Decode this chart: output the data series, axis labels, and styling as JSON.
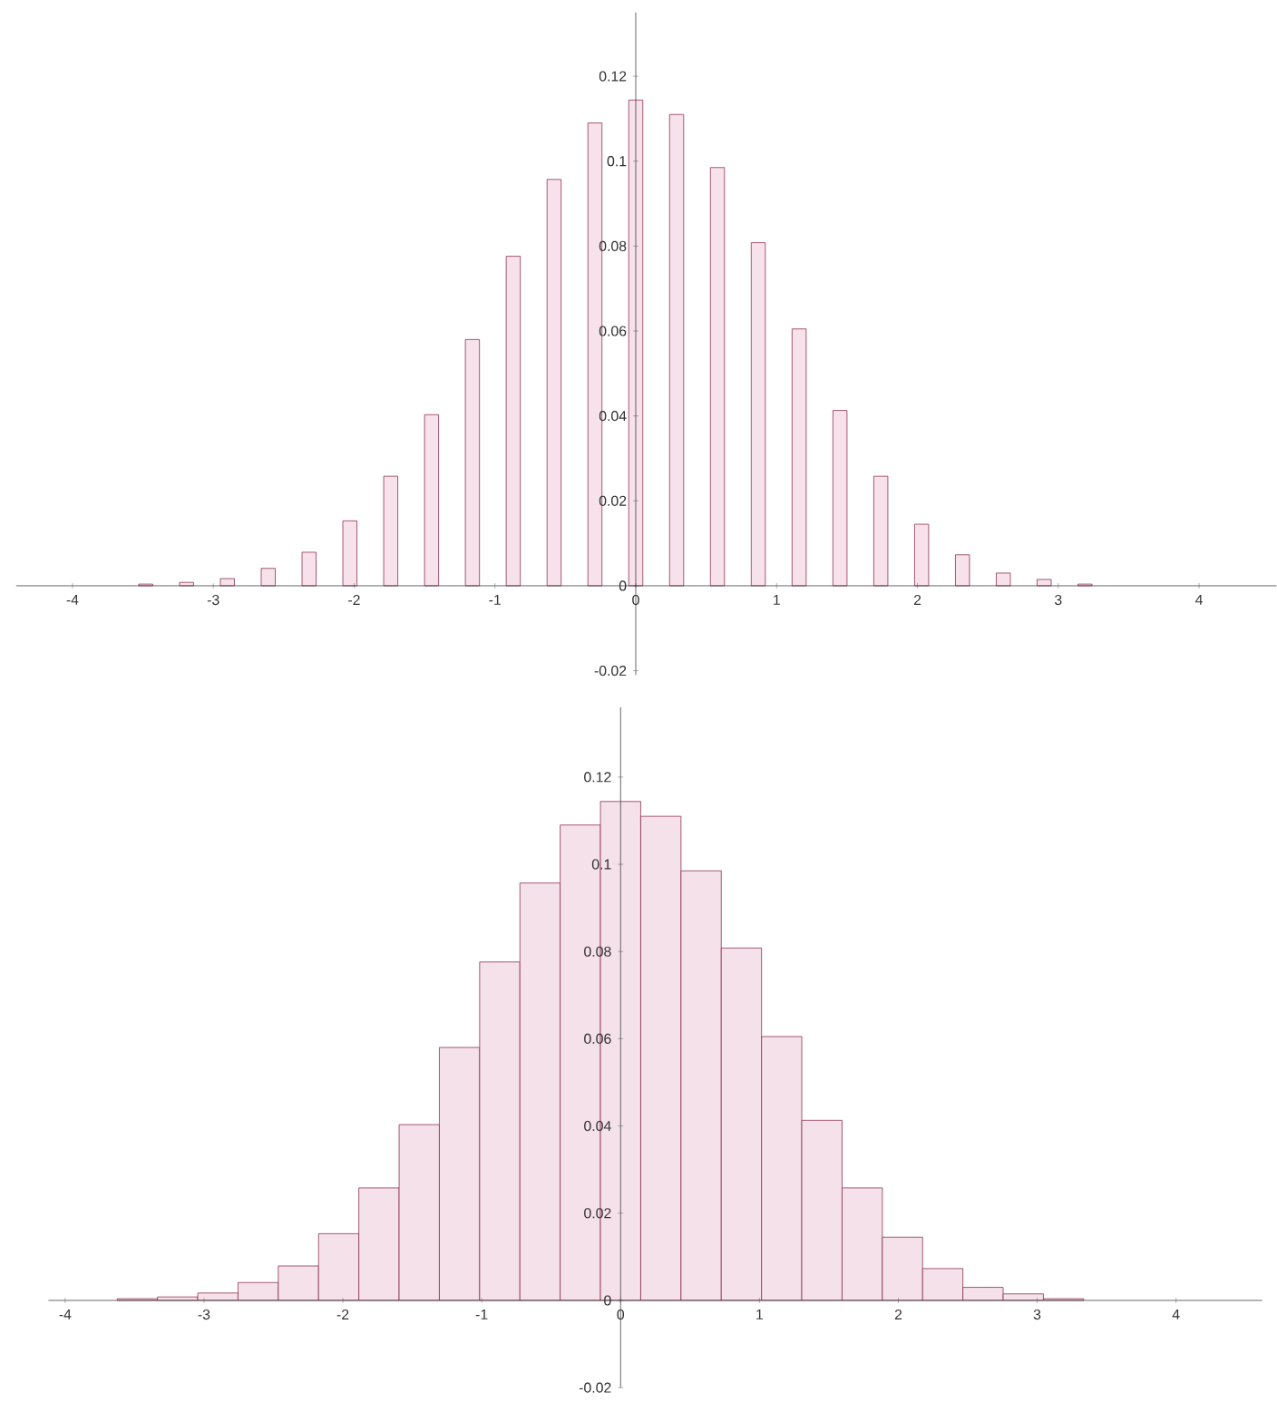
{
  "chart_data": [
    {
      "type": "bar",
      "x": [
        -3.48,
        -3.19,
        -2.9,
        -2.61,
        -2.32,
        -2.03,
        -1.74,
        -1.45,
        -1.16,
        -0.87,
        -0.58,
        -0.29,
        0,
        0.29,
        0.58,
        0.87,
        1.16,
        1.45,
        1.74,
        2.03,
        2.32,
        2.61,
        2.9,
        3.19
      ],
      "values": [
        0.0004,
        0.0008,
        0.0017,
        0.0041,
        0.0079,
        0.0153,
        0.0258,
        0.0403,
        0.058,
        0.0776,
        0.0957,
        0.109,
        0.1144,
        0.111,
        0.0985,
        0.0808,
        0.0605,
        0.0413,
        0.0258,
        0.0145,
        0.0073,
        0.003,
        0.0015,
        0.0004
      ],
      "color": "#f7e1ea",
      "xlim": [
        -4.4,
        4.55
      ],
      "ylim": [
        -0.021,
        0.135
      ],
      "xticks": [
        -4,
        -3,
        -2,
        -1,
        0,
        1,
        2,
        3,
        4
      ],
      "yticks": [
        -0.02,
        0,
        0.02,
        0.04,
        0.06,
        0.08,
        0.1,
        0.12
      ],
      "grid": false
    },
    {
      "type": "histogram",
      "bins": [
        -3.625,
        -3.335,
        -3.045,
        -2.755,
        -2.465,
        -2.175,
        -1.885,
        -1.595,
        -1.305,
        -1.015,
        -0.725,
        -0.435,
        -0.145,
        0.145,
        0.435,
        0.725,
        1.015,
        1.305,
        1.595,
        1.885,
        2.175,
        2.465,
        2.755,
        3.045,
        3.335
      ],
      "values": [
        0.0004,
        0.0008,
        0.0017,
        0.0041,
        0.0079,
        0.0153,
        0.0258,
        0.0403,
        0.058,
        0.0776,
        0.0957,
        0.109,
        0.1144,
        0.111,
        0.0985,
        0.0808,
        0.0605,
        0.0413,
        0.0258,
        0.0145,
        0.0073,
        0.003,
        0.0015,
        0.0004
      ],
      "color": "#f5e1ea",
      "xlim": [
        -4.12,
        4.62
      ],
      "ylim": [
        -0.02,
        0.136
      ],
      "xticks": [
        -4,
        -3,
        -2,
        -1,
        0,
        1,
        2,
        3,
        4
      ],
      "yticks": [
        -0.02,
        0,
        0.02,
        0.04,
        0.06,
        0.08,
        0.1,
        0.12
      ],
      "grid": false
    }
  ]
}
